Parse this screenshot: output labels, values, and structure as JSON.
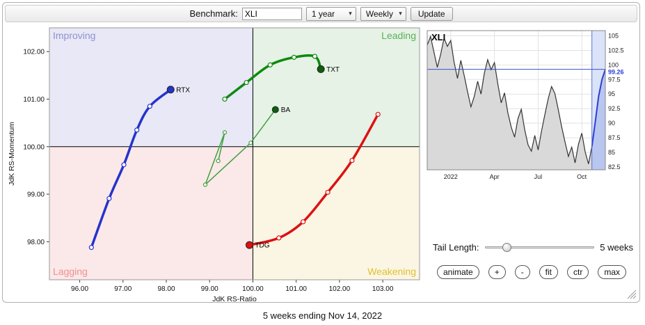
{
  "toolbar": {
    "benchmark_label": "Benchmark:",
    "benchmark_value": "XLI",
    "period_value": "1 year",
    "frequency_value": "Weekly",
    "update_label": "Update"
  },
  "controls": {
    "tail_length_label": "Tail Length:",
    "tail_length_value": "5 weeks",
    "buttons": [
      "animate",
      "+",
      "-",
      "fit",
      "ctr",
      "max"
    ]
  },
  "footer": {
    "caption": "5 weeks ending Nov 14, 2022"
  },
  "colors": {
    "improving_bg": "#e8e8f6",
    "leading_bg": "#e6f2e6",
    "lagging_bg": "#fbe8e8",
    "weakening_bg": "#fbf6e3",
    "improving_text": "#9090d0",
    "leading_text": "#58b058",
    "lagging_text": "#ee8f8f",
    "weakening_text": "#e0c030",
    "price_line": "#333333",
    "price_fill": "#d9d9d9",
    "highlight_line": "#2b3fd6",
    "level_line": "#3a4fd7"
  },
  "chart_data": [
    {
      "type": "scatter",
      "name": "rrg",
      "title": "Relative Rotation Graph",
      "xlabel": "JdK RS-Ratio",
      "ylabel": "JdK RS-Momentum",
      "xlim": [
        95.3,
        103.85
      ],
      "ylim": [
        97.2,
        102.5
      ],
      "xticks": [
        "96.00",
        "97.00",
        "98.00",
        "99.00",
        "100.00",
        "101.00",
        "102.00",
        "103.00"
      ],
      "yticks": [
        "98.00",
        "99.00",
        "100.00",
        "101.00",
        "102.00"
      ],
      "center": [
        100,
        100
      ],
      "quadrant_labels": {
        "top_left": "Improving",
        "top_right": "Leading",
        "bottom_left": "Lagging",
        "bottom_right": "Weakening"
      },
      "series": [
        {
          "name": "RTX",
          "color": "#2433cc",
          "head": "#2433cc",
          "width": 3.5,
          "smooth": true,
          "points": [
            [
              96.27,
              97.88
            ],
            [
              96.68,
              98.91
            ],
            [
              97.02,
              99.62
            ],
            [
              97.32,
              100.35
            ],
            [
              97.62,
              100.85
            ],
            [
              98.1,
              101.2
            ]
          ]
        },
        {
          "name": "TXT",
          "color": "#0e8a0e",
          "head": "#0d5f0d",
          "width": 3.5,
          "smooth": true,
          "points": [
            [
              99.35,
              101.0
            ],
            [
              99.85,
              101.35
            ],
            [
              100.4,
              101.72
            ],
            [
              100.95,
              101.88
            ],
            [
              101.43,
              101.9
            ],
            [
              101.57,
              101.63
            ]
          ]
        },
        {
          "name": "BA",
          "color": "#3fa03f",
          "head": "#0d5f0d",
          "width": 1.5,
          "smooth": false,
          "points": [
            [
              99.2,
              99.7
            ],
            [
              99.35,
              100.3
            ],
            [
              98.9,
              99.2
            ],
            [
              99.95,
              100.08
            ],
            [
              100.52,
              100.78
            ]
          ]
        },
        {
          "name": "TDG",
          "color": "#dd1111",
          "head": "#dd1111",
          "width": 3.5,
          "smooth": true,
          "points": [
            [
              102.89,
              100.68
            ],
            [
              102.29,
              99.71
            ],
            [
              101.73,
              99.04
            ],
            [
              101.16,
              98.42
            ],
            [
              100.6,
              98.08
            ],
            [
              99.92,
              97.93
            ]
          ]
        }
      ]
    },
    {
      "type": "area",
      "name": "price",
      "symbol": "XLI",
      "ylim": [
        82.0,
        105.9
      ],
      "yticks": [
        105,
        102.5,
        100,
        97.5,
        95,
        92.5,
        90,
        87.5,
        85,
        82.5
      ],
      "xticks": [
        {
          "label": "2022",
          "index": 7
        },
        {
          "label": "Apr",
          "index": 20
        },
        {
          "label": "Jul",
          "index": 33
        },
        {
          "label": "Oct",
          "index": 46
        }
      ],
      "level": 99.26,
      "level_label": "99.26",
      "highlight_last": 5,
      "values": [
        103.4,
        104.9,
        102.2,
        99.6,
        101.8,
        104.6,
        103.2,
        104.2,
        100.5,
        97.7,
        100.8,
        98.2,
        95.4,
        92.8,
        94.6,
        97.2,
        95.0,
        98.6,
        100.9,
        99.2,
        100.4,
        96.8,
        93.5,
        95.2,
        91.8,
        89.3,
        87.6,
        90.8,
        92.4,
        88.9,
        86.3,
        85.2,
        87.9,
        85.4,
        88.6,
        91.5,
        94.2,
        96.3,
        95.1,
        92.3,
        89.4,
        86.8,
        84.3,
        85.9,
        83.2,
        86.4,
        88.3,
        85.1,
        83.0,
        86.0,
        90.2,
        94.6,
        97.5,
        99.26
      ]
    }
  ]
}
